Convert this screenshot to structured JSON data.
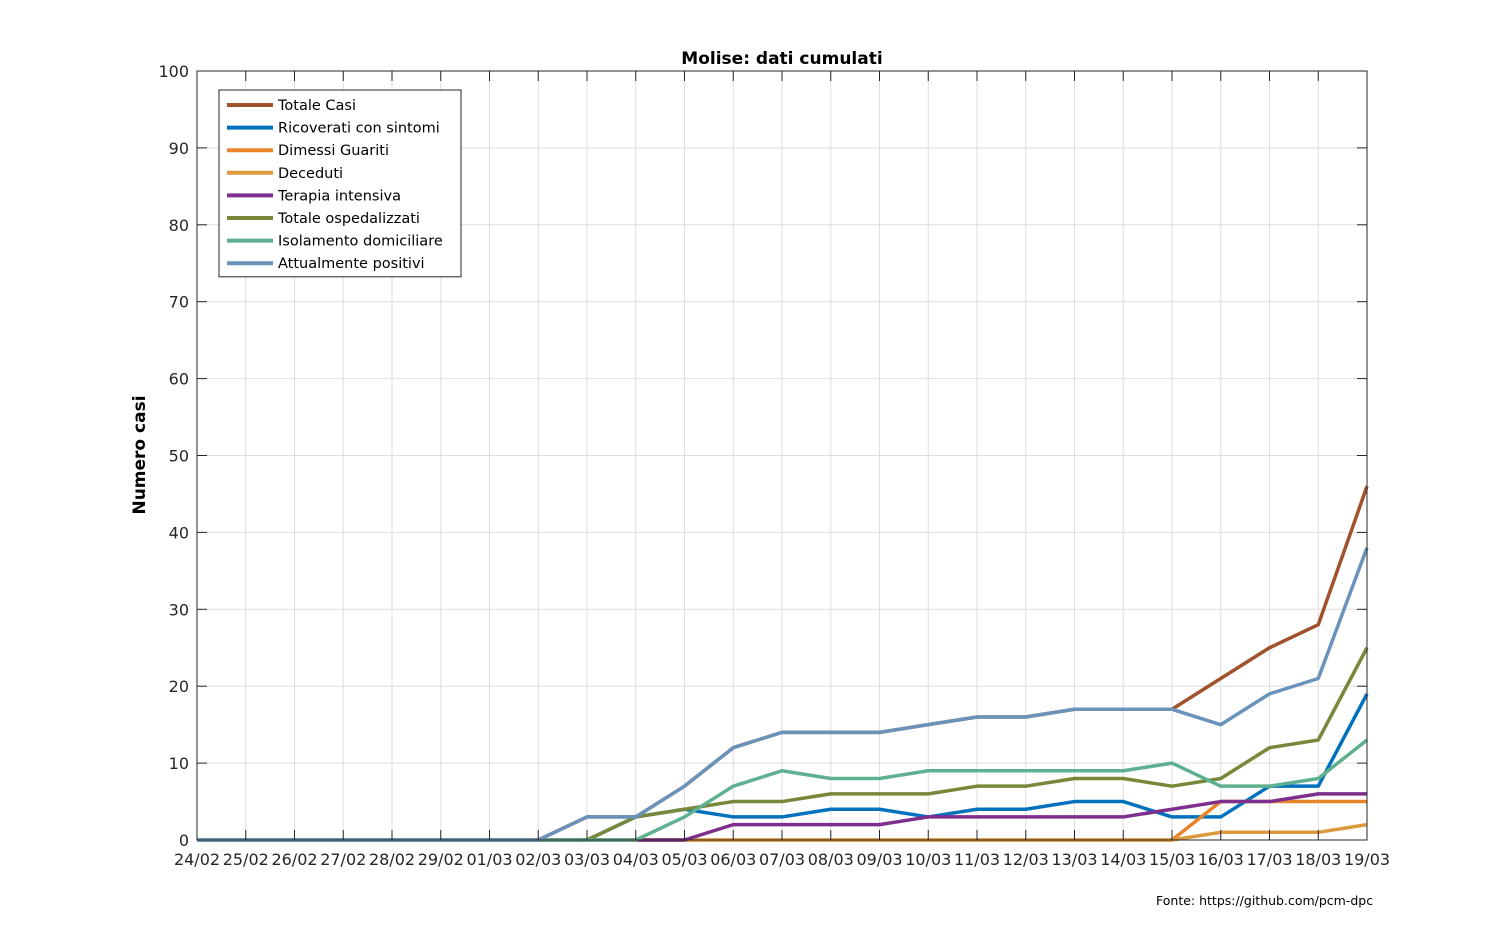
{
  "chart_data": {
    "type": "line",
    "title": "Molise: dati cumulati",
    "ylabel": "Numero casi",
    "xlabel": "",
    "ylim": [
      0,
      100
    ],
    "yticks": [
      0,
      10,
      20,
      30,
      40,
      50,
      60,
      70,
      80,
      90,
      100
    ],
    "grid": true,
    "legend_position": "top-left",
    "categories": [
      "24/02",
      "25/02",
      "26/02",
      "27/02",
      "28/02",
      "29/02",
      "01/03",
      "02/03",
      "03/03",
      "04/03",
      "05/03",
      "06/03",
      "07/03",
      "08/03",
      "09/03",
      "10/03",
      "11/03",
      "12/03",
      "13/03",
      "14/03",
      "15/03",
      "16/03",
      "17/03",
      "18/03",
      "19/03"
    ],
    "series": [
      {
        "name": "Totale Casi",
        "color": "#a0522d",
        "values": [
          0,
          0,
          0,
          0,
          0,
          0,
          0,
          0,
          3,
          3,
          7,
          12,
          14,
          14,
          14,
          15,
          16,
          16,
          17,
          17,
          17,
          21,
          25,
          28,
          46
        ]
      },
      {
        "name": "Ricoverati con sintomi",
        "color": "#0072bd",
        "values": [
          0,
          0,
          0,
          0,
          0,
          0,
          0,
          0,
          0,
          3,
          4,
          3,
          3,
          4,
          4,
          3,
          4,
          4,
          5,
          5,
          3,
          3,
          7,
          7,
          19
        ]
      },
      {
        "name": "Dimessi Guariti",
        "color": "#e8852a",
        "values": [
          0,
          0,
          0,
          0,
          0,
          0,
          0,
          0,
          0,
          0,
          0,
          0,
          0,
          0,
          0,
          0,
          0,
          0,
          0,
          0,
          0,
          5,
          5,
          5,
          5
        ]
      },
      {
        "name": "Deceduti",
        "color": "#dd9a3c",
        "values": [
          0,
          0,
          0,
          0,
          0,
          0,
          0,
          0,
          0,
          0,
          0,
          0,
          0,
          0,
          0,
          0,
          0,
          0,
          0,
          0,
          0,
          1,
          1,
          1,
          2
        ]
      },
      {
        "name": "Terapia intensiva",
        "color": "#7e2f8e",
        "values": [
          0,
          0,
          0,
          0,
          0,
          0,
          0,
          0,
          0,
          0,
          0,
          2,
          2,
          2,
          2,
          3,
          3,
          3,
          3,
          3,
          4,
          5,
          5,
          6,
          6
        ]
      },
      {
        "name": "Totale ospedalizzati",
        "color": "#77883a",
        "values": [
          0,
          0,
          0,
          0,
          0,
          0,
          0,
          0,
          0,
          3,
          4,
          5,
          5,
          6,
          6,
          6,
          7,
          7,
          8,
          8,
          7,
          8,
          12,
          13,
          25
        ]
      },
      {
        "name": "Isolamento domiciliare",
        "color": "#5fb08e",
        "values": [
          0,
          0,
          0,
          0,
          0,
          0,
          0,
          0,
          0,
          0,
          3,
          7,
          9,
          8,
          8,
          9,
          9,
          9,
          9,
          9,
          10,
          7,
          7,
          8,
          13
        ]
      },
      {
        "name": "Attualmente positivi",
        "color": "#6a93bb",
        "values": [
          0,
          0,
          0,
          0,
          0,
          0,
          0,
          0,
          3,
          3,
          7,
          12,
          14,
          14,
          14,
          15,
          16,
          16,
          17,
          17,
          17,
          15,
          19,
          21,
          38
        ]
      }
    ]
  },
  "footer": {
    "source": "Fonte: https://github.com/pcm-dpc"
  }
}
